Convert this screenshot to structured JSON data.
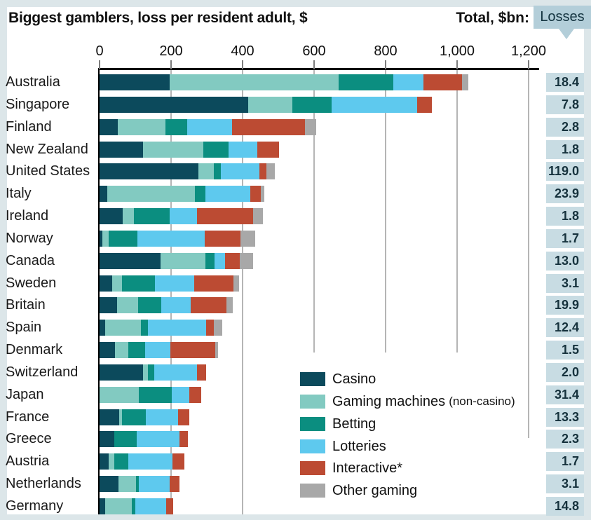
{
  "header": {
    "title": "Biggest gamblers, loss per resident adult, $",
    "total_label": "Total, $bn:",
    "losses_label": "Losses"
  },
  "colors": {
    "frame_background": "#dce6e9",
    "canvas_background": "#ffffff",
    "axis_line": "#000000",
    "gridline": "#b5b5b5",
    "value_box_background": "#c8dce3",
    "losses_callout_background": "#b3ced9",
    "text": "#111111",
    "series_colors": [
      "#0c4a5c",
      "#82cac1",
      "#0b8e80",
      "#5ec9ee",
      "#bc4b33",
      "#a8a8a8"
    ]
  },
  "chart_data": {
    "type": "bar",
    "stacked": true,
    "orientation": "horizontal",
    "title": "Biggest gamblers, loss per resident adult, $",
    "xlabel": "Loss per resident adult, $",
    "xlim": [
      0,
      1260
    ],
    "x_axis": {
      "tick_labels": [
        "0",
        "200",
        "400",
        "600",
        "800",
        "1,000",
        "1,200"
      ],
      "tick_values": [
        0,
        200,
        400,
        600,
        800,
        1000,
        1200
      ]
    },
    "grid": "vertical",
    "legend_position": "inside-bottom-right",
    "series_names": [
      "Casino",
      "Gaming machines (non-casino)",
      "Betting",
      "Lotteries",
      "Interactive*",
      "Other gaming"
    ],
    "legend": [
      {
        "label": "Casino",
        "suffix": ""
      },
      {
        "label": "Gaming machines",
        "suffix": "(non-casino)"
      },
      {
        "label": "Betting",
        "suffix": ""
      },
      {
        "label": "Lotteries",
        "suffix": ""
      },
      {
        "label": "Interactive*",
        "suffix": ""
      },
      {
        "label": "Other gaming",
        "suffix": ""
      }
    ],
    "total_column_header": "Total, $bn: Losses",
    "rows": [
      {
        "country": "Australia",
        "segments": [
          197,
          471,
          154,
          84,
          108,
          18
        ],
        "total_bn": "18.4"
      },
      {
        "country": "Singapore",
        "segments": [
          415,
          124,
          110,
          239,
          42,
          0
        ],
        "total_bn": "7.8"
      },
      {
        "country": "Finland",
        "segments": [
          51,
          134,
          60,
          126,
          204,
          31
        ],
        "total_bn": "2.8"
      },
      {
        "country": "New Zealand",
        "segments": [
          121,
          169,
          70,
          82,
          60,
          0
        ],
        "total_bn": "1.8"
      },
      {
        "country": "United States",
        "segments": [
          276,
          44,
          20,
          108,
          19,
          24
        ],
        "total_bn": "119.0"
      },
      {
        "country": "Italy",
        "segments": [
          21,
          245,
          30,
          125,
          30,
          9
        ],
        "total_bn": "23.9"
      },
      {
        "country": "Ireland",
        "segments": [
          65,
          31,
          100,
          77,
          157,
          27
        ],
        "total_bn": "1.8"
      },
      {
        "country": "Norway",
        "segments": [
          7,
          19,
          79,
          189,
          101,
          41
        ],
        "total_bn": "1.7"
      },
      {
        "country": "Canada",
        "segments": [
          170,
          126,
          26,
          30,
          41,
          36
        ],
        "total_bn": "13.0"
      },
      {
        "country": "Sweden",
        "segments": [
          36,
          27,
          91,
          110,
          110,
          16
        ],
        "total_bn": "3.1"
      },
      {
        "country": "Britain",
        "segments": [
          49,
          58,
          66,
          82,
          100,
          17
        ],
        "total_bn": "19.9"
      },
      {
        "country": "Spain",
        "segments": [
          16,
          99,
          20,
          164,
          21,
          24
        ],
        "total_bn": "12.4"
      },
      {
        "country": "Denmark",
        "segments": [
          44,
          36,
          48,
          71,
          125,
          8
        ],
        "total_bn": "1.5"
      },
      {
        "country": "Switzerland",
        "segments": [
          122,
          14,
          16,
          121,
          25,
          0
        ],
        "total_bn": "2.0"
      },
      {
        "country": "Japan",
        "segments": [
          0,
          110,
          92,
          49,
          33,
          0
        ],
        "total_bn": "31.4"
      },
      {
        "country": "France",
        "segments": [
          54,
          9,
          66,
          90,
          33,
          0
        ],
        "total_bn": "13.3"
      },
      {
        "country": "Greece",
        "segments": [
          42,
          0,
          62,
          120,
          24,
          0
        ],
        "total_bn": "2.3"
      },
      {
        "country": "Austria",
        "segments": [
          26,
          16,
          39,
          122,
          35,
          0
        ],
        "total_bn": "1.7"
      },
      {
        "country": "Netherlands",
        "segments": [
          52,
          50,
          7,
          88,
          27,
          0
        ],
        "total_bn": "3.1"
      },
      {
        "country": "Germany",
        "segments": [
          15,
          76,
          9,
          87,
          18,
          0
        ],
        "total_bn": "14.8"
      }
    ]
  }
}
